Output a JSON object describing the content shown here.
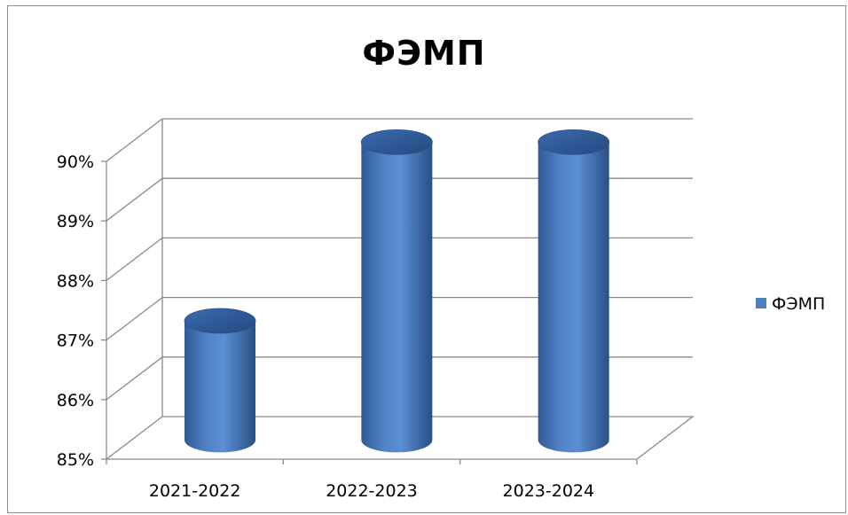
{
  "chart_data": {
    "type": "bar",
    "title": "ФЭМП",
    "categories": [
      "2021-2022",
      "2022-2023",
      "2023-2024"
    ],
    "series": [
      {
        "name": "ФЭМП",
        "values": [
          87,
          90,
          90
        ],
        "color": "#4f81bd"
      }
    ],
    "yticks": [
      "85%",
      "86%",
      "87%",
      "88%",
      "89%",
      "90%"
    ],
    "ylim": [
      85,
      90
    ],
    "grid": true,
    "legend": "right",
    "style": "3d-cylinder"
  }
}
